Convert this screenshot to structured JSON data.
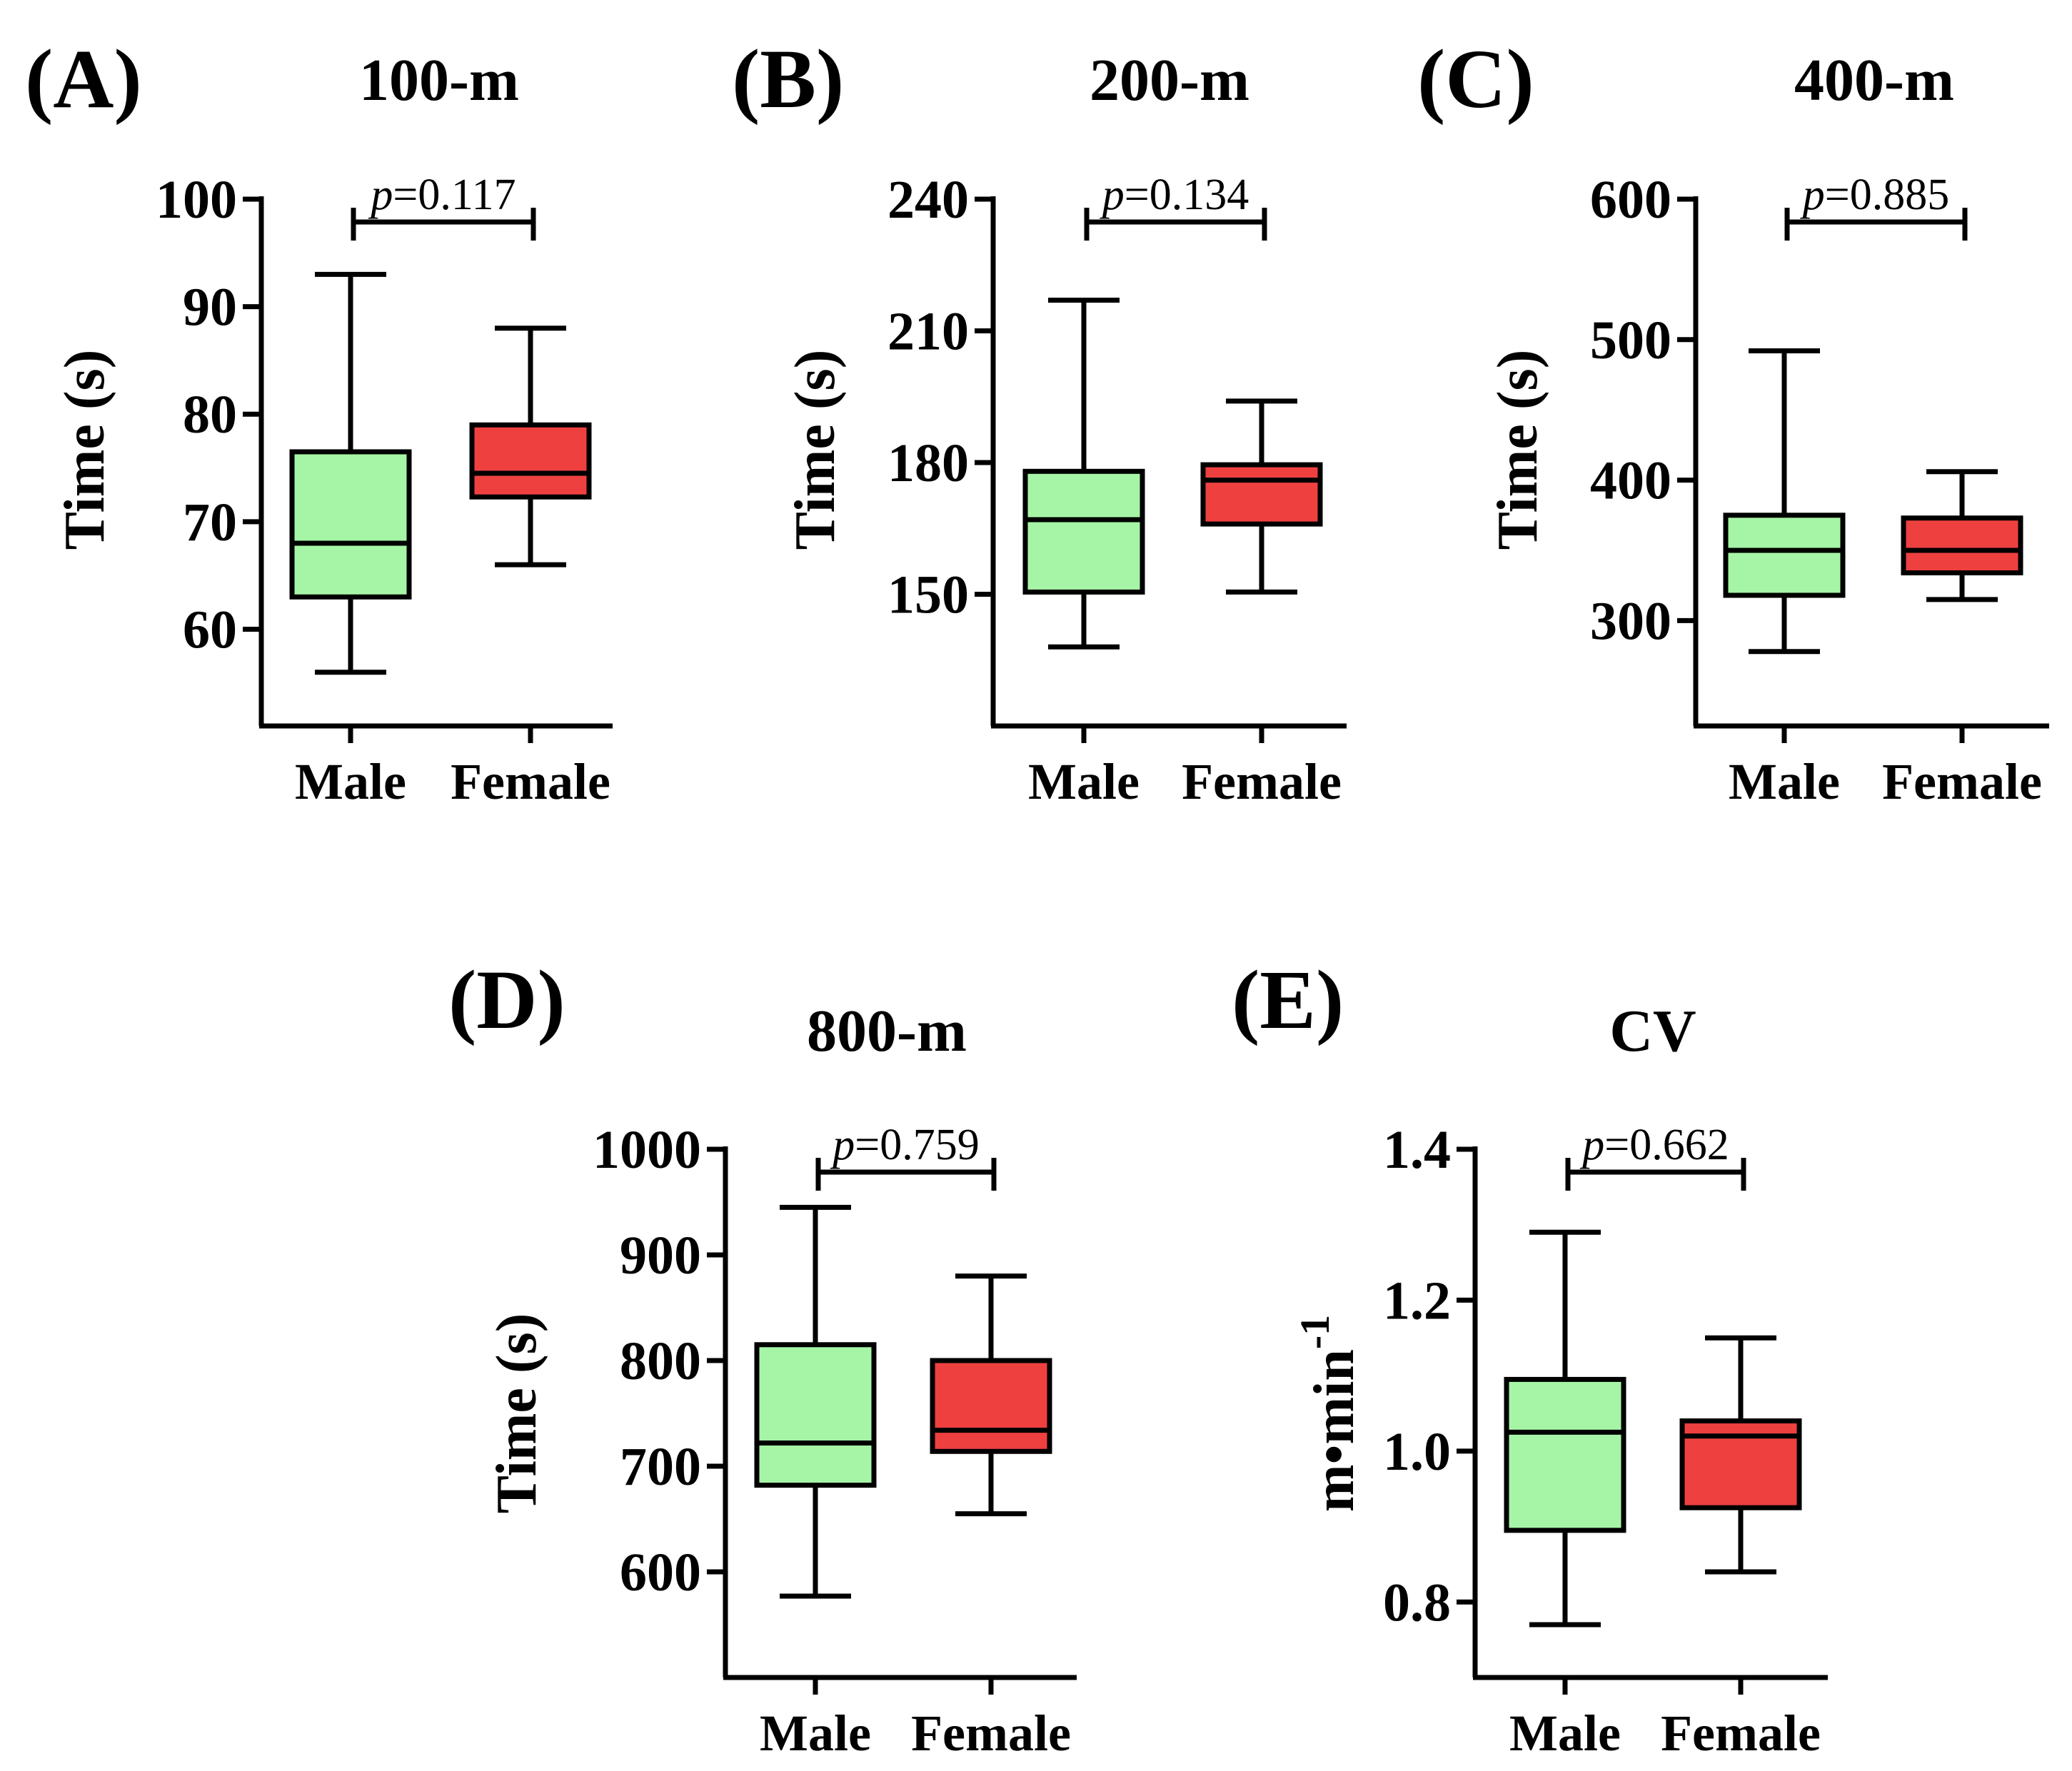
{
  "colors": {
    "male": "#a6f5a6",
    "female": "#ef4040",
    "stroke": "#000000"
  },
  "chart_data": [
    {
      "type": "box",
      "letter": "(A)",
      "title": "100-m",
      "ylabel": "Time (s)",
      "ylim": [
        51,
        100
      ],
      "yticks": [
        60,
        70,
        80,
        90,
        100
      ],
      "categories": [
        "Male",
        "Female"
      ],
      "p_prefix": "p",
      "p_value": "=0.117",
      "boxes": [
        {
          "name": "Male",
          "min": 56,
          "q1": 63,
          "median": 68,
          "q3": 76.5,
          "max": 93
        },
        {
          "name": "Female",
          "min": 66,
          "q1": 72.3,
          "median": 74.5,
          "q3": 79,
          "max": 88
        }
      ]
    },
    {
      "type": "box",
      "letter": "(B)",
      "title": "200-m",
      "ylabel": "Time (s)",
      "ylim": [
        120,
        240
      ],
      "yticks": [
        150,
        180,
        210,
        240
      ],
      "categories": [
        "Male",
        "Female"
      ],
      "p_prefix": "p",
      "p_value": "=0.134",
      "boxes": [
        {
          "name": "Male",
          "min": 138,
          "q1": 150.5,
          "median": 167,
          "q3": 178,
          "max": 217
        },
        {
          "name": "Female",
          "min": 150.5,
          "q1": 166,
          "median": 176,
          "q3": 179.5,
          "max": 194
        }
      ]
    },
    {
      "type": "box",
      "letter": "(C)",
      "title": "400-m",
      "ylabel": "Time (s)",
      "ylim": [
        225,
        600
      ],
      "yticks": [
        300,
        400,
        500,
        600
      ],
      "categories": [
        "Male",
        "Female"
      ],
      "p_prefix": "p",
      "p_value": "=0.885",
      "boxes": [
        {
          "name": "Male",
          "min": 278,
          "q1": 318,
          "median": 350,
          "q3": 375,
          "max": 492
        },
        {
          "name": "Female",
          "min": 315,
          "q1": 334,
          "median": 350,
          "q3": 373,
          "max": 406
        }
      ]
    },
    {
      "type": "box",
      "letter": "(D)",
      "title": "800-m",
      "ylabel": "Time (s)",
      "ylim": [
        500,
        1000
      ],
      "yticks": [
        600,
        700,
        800,
        900,
        1000
      ],
      "categories": [
        "Male",
        "Female"
      ],
      "p_prefix": "p",
      "p_value": "=0.759",
      "boxes": [
        {
          "name": "Male",
          "min": 577,
          "q1": 682,
          "median": 722,
          "q3": 815,
          "max": 945
        },
        {
          "name": "Female",
          "min": 655,
          "q1": 714,
          "median": 734,
          "q3": 800,
          "max": 880
        }
      ]
    },
    {
      "type": "box",
      "letter": "(E)",
      "title": "CV",
      "ylabel": "m•min",
      "ylabel_sup": "-1",
      "ylim": [
        0.7,
        1.4
      ],
      "yticks": [
        "0.8",
        "1.0",
        "1.2",
        "1.4"
      ],
      "categories": [
        "Male",
        "Female"
      ],
      "p_prefix": "p",
      "p_value": "=0.662",
      "boxes": [
        {
          "name": "Male",
          "min": 0.77,
          "q1": 0.895,
          "median": 1.025,
          "q3": 1.095,
          "max": 1.29
        },
        {
          "name": "Female",
          "min": 0.84,
          "q1": 0.925,
          "median": 1.02,
          "q3": 1.04,
          "max": 1.15
        }
      ]
    }
  ]
}
